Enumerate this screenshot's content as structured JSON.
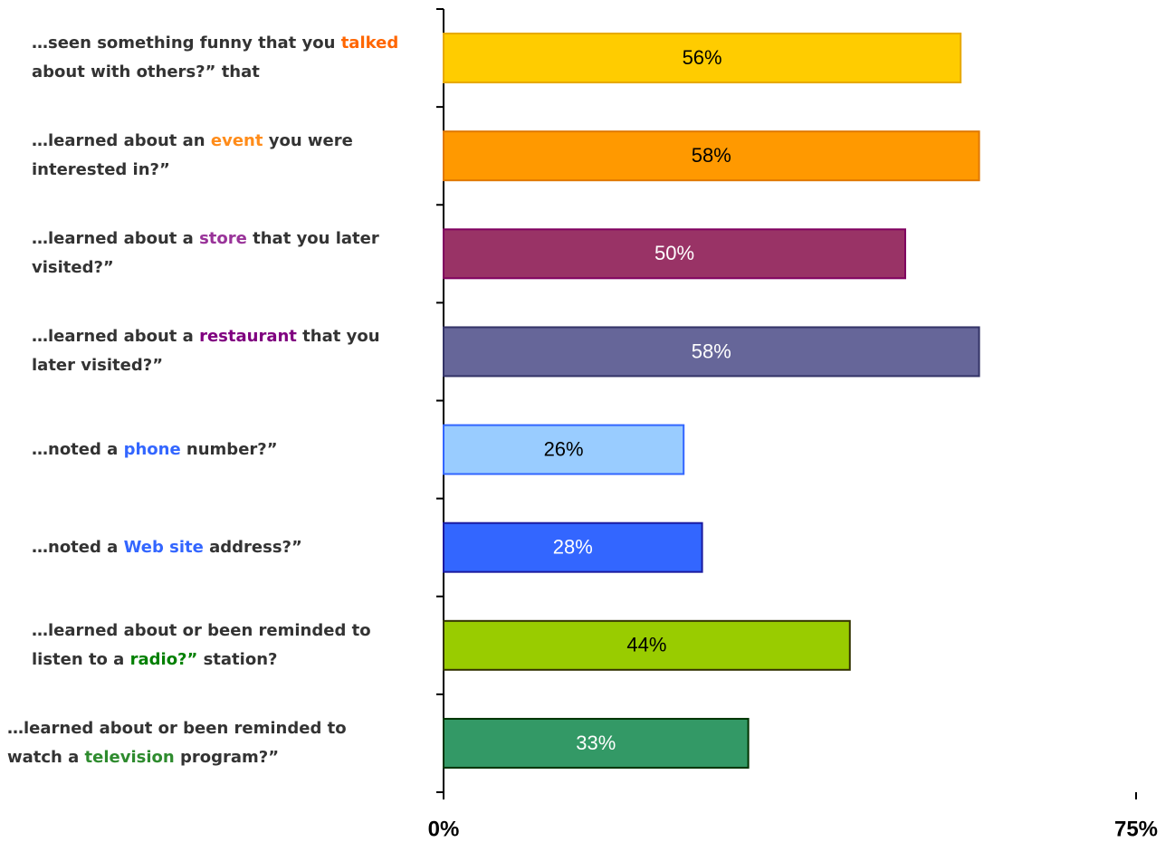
{
  "chart_data": {
    "type": "bar",
    "orientation": "horizontal",
    "categories": [
      [
        "…seen something funny that you ",
        "talked",
        " about with others?” that"
      ],
      [
        "…learned about an ",
        "event",
        " you were interested in?”"
      ],
      [
        "…learned about a ",
        "store",
        " that you later visited?”"
      ],
      [
        "…learned about a ",
        "restaurant",
        " that you later visited?”"
      ],
      [
        "…noted a ",
        "phone",
        " number?”"
      ],
      [
        "…noted a ",
        "Web site",
        " address?”"
      ],
      [
        "…learned about or been reminded to listen to a ",
        "radio?”",
        " station?"
      ],
      [
        "…learned about or been reminded to watch a ",
        "television",
        " program?”"
      ]
    ],
    "category_highlight_colors": [
      "#ff6600",
      "#ff8c1a",
      "#993399",
      "#800080",
      "#3366ff",
      "#3366ff",
      "#008000",
      "#2e8b2e"
    ],
    "values": [
      56,
      58,
      50,
      58,
      26,
      28,
      44,
      33
    ],
    "value_labels": [
      "56%",
      "58%",
      "50%",
      "58%",
      "26%",
      "28%",
      "44%",
      "33%"
    ],
    "colors": [
      "#ffcc00",
      "#ff9900",
      "#993366",
      "#666699",
      "#99ccff",
      "#3366ff",
      "#99cc00",
      "#339966"
    ],
    "border_colors": [
      "#e6a800",
      "#e07800",
      "#800060",
      "#333366",
      "#3366ff",
      "#1a1aa0",
      "#333300",
      "#003300"
    ],
    "value_label_colors": [
      "#000000",
      "#000000",
      "#ffffff",
      "#ffffff",
      "#000000",
      "#ffffff",
      "#000000",
      "#ffffff"
    ],
    "xlim": [
      0,
      75
    ],
    "xticks": [
      {
        "value": 0,
        "label": "0%"
      },
      {
        "value": 75,
        "label": "75%"
      }
    ],
    "grid": false
  }
}
